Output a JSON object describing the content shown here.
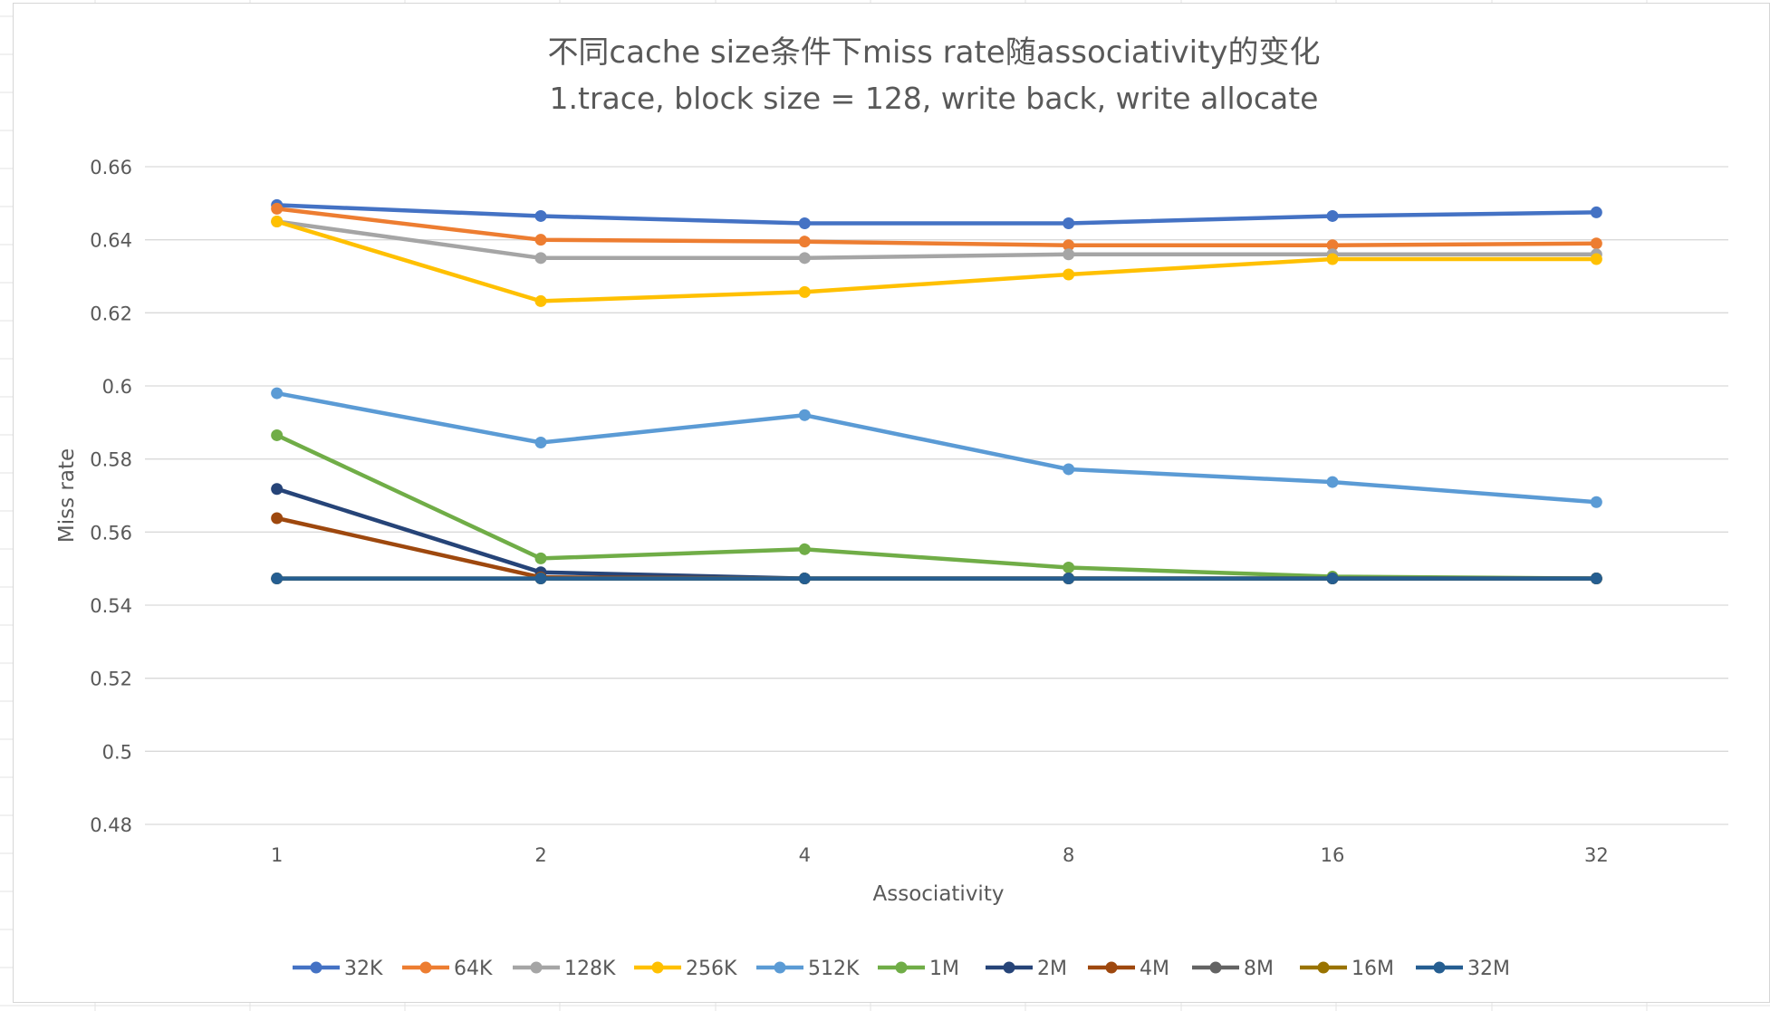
{
  "chart_data": {
    "type": "line",
    "title": "不同cache size条件下miss rate随associativity的变化",
    "subtitle": "1.trace, block size = 128, write back, write allocate",
    "xlabel": "Associativity",
    "ylabel": "Miss rate",
    "categories": [
      "1",
      "2",
      "4",
      "8",
      "16",
      "32"
    ],
    "y_ticks": [
      "0.48",
      "0.5",
      "0.52",
      "0.54",
      "0.56",
      "0.58",
      "0.6",
      "0.62",
      "0.64",
      "0.66"
    ],
    "ylim": [
      0.48,
      0.66
    ],
    "grid": true,
    "legend_position": "bottom",
    "series": [
      {
        "name": "32K",
        "color": "#4472C4",
        "values": [
          0.6495,
          0.6465,
          0.6445,
          0.6445,
          0.6465,
          0.6475
        ]
      },
      {
        "name": "64K",
        "color": "#ED7D31",
        "values": [
          0.6485,
          0.64,
          0.6395,
          0.6385,
          0.6385,
          0.639
        ]
      },
      {
        "name": "128K",
        "color": "#A5A5A5",
        "values": [
          0.645,
          0.635,
          0.635,
          0.636,
          0.636,
          0.636
        ]
      },
      {
        "name": "256K",
        "color": "#FFC000",
        "values": [
          0.645,
          0.6232,
          0.6257,
          0.6305,
          0.6347,
          0.6347
        ]
      },
      {
        "name": "512K",
        "color": "#5B9BD5",
        "values": [
          0.598,
          0.5845,
          0.592,
          0.5772,
          0.5737,
          0.5682
        ]
      },
      {
        "name": "1M",
        "color": "#70AD47",
        "values": [
          0.5865,
          0.5528,
          0.5553,
          0.5503,
          0.5478,
          0.5473
        ]
      },
      {
        "name": "2M",
        "color": "#264478",
        "values": [
          0.5718,
          0.549,
          0.5473,
          0.5473,
          0.5473,
          0.5473
        ]
      },
      {
        "name": "4M",
        "color": "#9E480E",
        "values": [
          0.5638,
          0.5476,
          0.5473,
          0.5473,
          0.5473,
          0.5473
        ]
      },
      {
        "name": "8M",
        "color": "#636363",
        "values": [
          0.5473,
          0.5473,
          0.5473,
          0.5473,
          0.5473,
          0.5473
        ]
      },
      {
        "name": "16M",
        "color": "#997300",
        "values": [
          0.5473,
          0.5473,
          0.5473,
          0.5473,
          0.5473,
          0.5473
        ]
      },
      {
        "name": "32M",
        "color": "#255E91",
        "values": [
          0.5473,
          0.5473,
          0.5473,
          0.5473,
          0.5473,
          0.5473
        ]
      }
    ]
  }
}
